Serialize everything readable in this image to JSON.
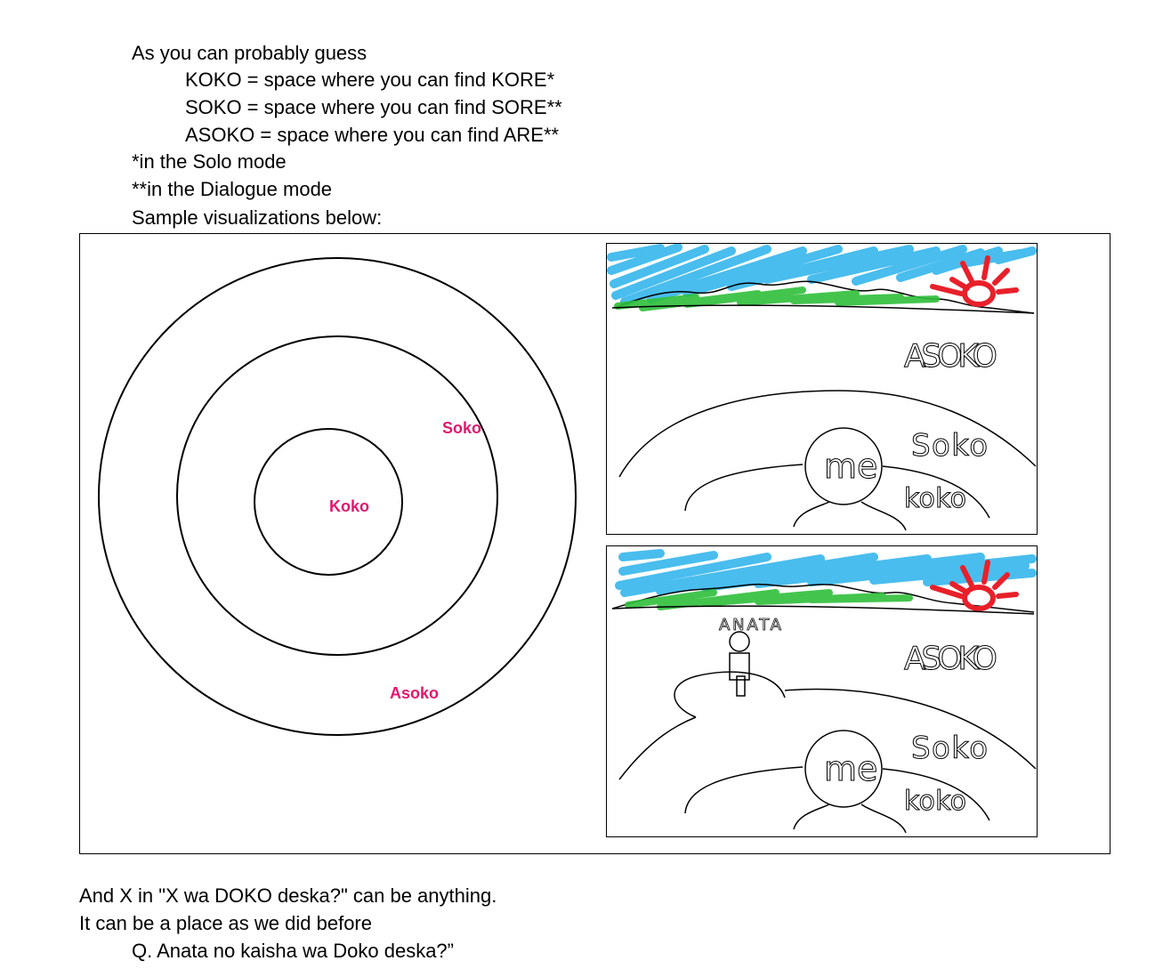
{
  "intro": {
    "lead": "As you can probably guess",
    "koko_line": "KOKO = space where you can find KORE*",
    "soko_line": "SOKO = space where you can find SORE**",
    "asoko_line": "ASOKO = space where you can find ARE**",
    "note_solo": "*in the Solo mode",
    "note_dialogue": "**in the Dialogue mode",
    "sample_caption": "Sample visualizations below:"
  },
  "rings_diagram": {
    "koko_label": "Koko",
    "soko_label": "Soko",
    "asoko_label": "Asoko",
    "label_color": "#e0186c"
  },
  "sketch_solo": {
    "asoko_label": "ASOKO",
    "soko_label": "Soko",
    "koko_label": "koko",
    "me_label": "me"
  },
  "sketch_dialogue": {
    "anata_label": "ANATA",
    "asoko_label": "ASOKO",
    "soko_label": "Soko",
    "koko_label": "koko",
    "me_label": "me"
  },
  "outro": {
    "line1": "And X in \"X wa DOKO deska?\" can be anything.",
    "line2": "It can be a place as we did before",
    "line3": "Q. Anata no kaisha wa Doko deska?”"
  },
  "colors": {
    "sky": "#35b6ec",
    "grass": "#2fbf3a",
    "sun": "#e8202a"
  }
}
